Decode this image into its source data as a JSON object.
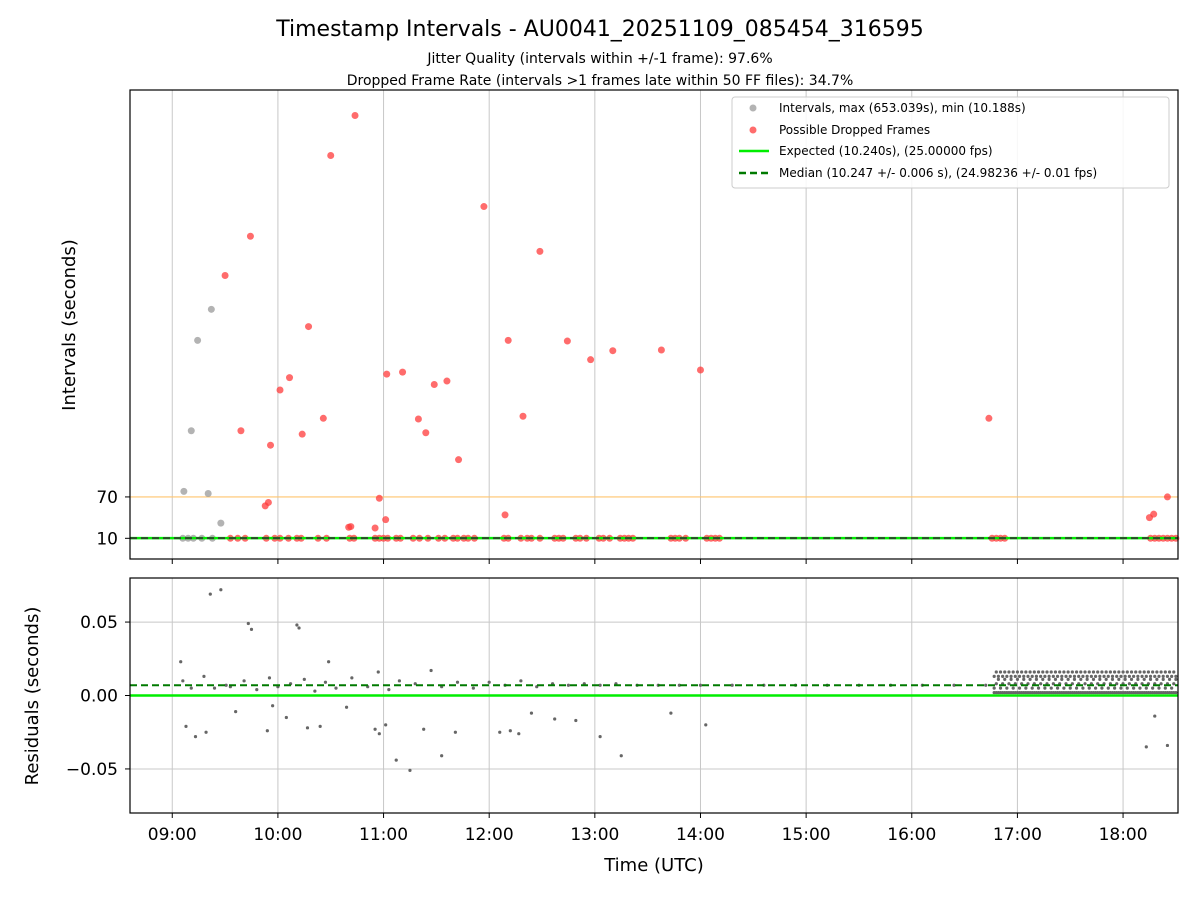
{
  "title": "Timestamp Intervals - AU0041_20251109_085454_316595",
  "subtitle_1": "Jitter Quality (intervals within +/-1 frame): 97.6%",
  "subtitle_2": "Dropped Frame Rate (intervals >1 frames late within 50 FF files): 34.7%",
  "colors": {
    "interval_points": "#999999",
    "dropped_points": "#ff3b3b",
    "expected_line": "#00ee00",
    "median_line": "#007a00",
    "threshold_line": "#ffc46e",
    "residual_points": "#666666",
    "grid": "#c8c8c8"
  },
  "chart_data": [
    {
      "type": "scatter",
      "panel": "top",
      "ylabel": "Intervals (seconds)",
      "y_tick_labels": [
        "10",
        "70"
      ],
      "y_ticks": [
        10,
        70
      ],
      "x_tick_labels": [
        "09:00",
        "10:00",
        "11:00",
        "12:00",
        "13:00",
        "14:00",
        "15:00",
        "16:00",
        "17:00",
        "18:00"
      ],
      "xlim_hours": [
        8.6,
        18.52
      ],
      "ylim_axis": [
        -20,
        660
      ],
      "grid": "vertical",
      "legend_position": "top-right",
      "legend": [
        "Intervals, max (653.039s), min (10.188s)",
        "Possible Dropped Frames",
        "Expected (10.240s), (25.00000 fps)",
        "Median (10.247 +/- 0.006 s), (24.98236 +/- 0.01 fps)"
      ],
      "expected_interval_s": 10.24,
      "median_interval_s": 10.247,
      "threshold_interval_s": 70,
      "series": [
        {
          "name": "Intervals, max (653.039s), min (10.188s)",
          "points": [
            [
              9.11,
              78
            ],
            [
              9.18,
              166
            ],
            [
              9.24,
              297
            ],
            [
              9.34,
              75
            ],
            [
              9.37,
              342
            ],
            [
              9.46,
              32
            ],
            [
              9.1,
              10
            ],
            [
              9.15,
              10
            ],
            [
              9.2,
              10
            ],
            [
              9.28,
              10
            ],
            [
              9.38,
              10
            ]
          ]
        },
        {
          "name": "Possible Dropped Frames",
          "points": [
            [
              9.5,
              391
            ],
            [
              9.65,
              166
            ],
            [
              9.74,
              448
            ],
            [
              9.88,
              57
            ],
            [
              9.91,
              62
            ],
            [
              9.93,
              145
            ],
            [
              10.02,
              225
            ],
            [
              10.11,
              243
            ],
            [
              10.23,
              161
            ],
            [
              10.29,
              317
            ],
            [
              10.43,
              184
            ],
            [
              10.67,
              26
            ],
            [
              10.69,
              27
            ],
            [
              10.73,
              623
            ],
            [
              10.5,
              565
            ],
            [
              10.92,
              25
            ],
            [
              10.96,
              68
            ],
            [
              11.02,
              37
            ],
            [
              11.03,
              248
            ],
            [
              11.18,
              251
            ],
            [
              11.33,
              183
            ],
            [
              11.4,
              163
            ],
            [
              11.48,
              233
            ],
            [
              11.6,
              238
            ],
            [
              11.71,
              124
            ],
            [
              11.95,
              491
            ],
            [
              12.15,
              44
            ],
            [
              12.18,
              297
            ],
            [
              12.32,
              187
            ],
            [
              12.48,
              426
            ],
            [
              12.74,
              296
            ],
            [
              12.96,
              269
            ],
            [
              13.17,
              282
            ],
            [
              13.63,
              283
            ],
            [
              14.0,
              254
            ],
            [
              16.73,
              184
            ],
            [
              18.25,
              40
            ],
            [
              18.29,
              45
            ],
            [
              18.42,
              70
            ],
            [
              9.55,
              10
            ],
            [
              9.62,
              10
            ],
            [
              9.69,
              10
            ],
            [
              9.89,
              10
            ],
            [
              9.97,
              10
            ],
            [
              10.02,
              10
            ],
            [
              10.1,
              10
            ],
            [
              10.18,
              10
            ],
            [
              10.22,
              10
            ],
            [
              10.38,
              10
            ],
            [
              10.46,
              10
            ],
            [
              10.68,
              10
            ],
            [
              10.72,
              10
            ],
            [
              10.92,
              10
            ],
            [
              10.96,
              10
            ],
            [
              11.0,
              10
            ],
            [
              11.04,
              10
            ],
            [
              11.12,
              10
            ],
            [
              11.16,
              10
            ],
            [
              11.28,
              10
            ],
            [
              11.34,
              10
            ],
            [
              11.42,
              10
            ],
            [
              11.52,
              10
            ],
            [
              11.58,
              10
            ],
            [
              11.66,
              10
            ],
            [
              11.7,
              10
            ],
            [
              11.76,
              10
            ],
            [
              11.8,
              10
            ],
            [
              11.86,
              10
            ],
            [
              12.14,
              10
            ],
            [
              12.18,
              10
            ],
            [
              12.3,
              10
            ],
            [
              12.36,
              10
            ],
            [
              12.4,
              10
            ],
            [
              12.48,
              10
            ],
            [
              12.62,
              10
            ],
            [
              12.66,
              10
            ],
            [
              12.7,
              10
            ],
            [
              12.82,
              10
            ],
            [
              12.86,
              10
            ],
            [
              12.92,
              10
            ],
            [
              13.04,
              10
            ],
            [
              13.08,
              10
            ],
            [
              13.14,
              10
            ],
            [
              13.24,
              10
            ],
            [
              13.28,
              10
            ],
            [
              13.32,
              10
            ],
            [
              13.36,
              10
            ],
            [
              13.72,
              10
            ],
            [
              13.76,
              10
            ],
            [
              13.8,
              10
            ],
            [
              13.86,
              10
            ],
            [
              14.06,
              10
            ],
            [
              14.1,
              10
            ],
            [
              14.14,
              10
            ],
            [
              14.18,
              10
            ],
            [
              16.76,
              10
            ],
            [
              16.8,
              10
            ],
            [
              16.84,
              10
            ],
            [
              16.88,
              10
            ],
            [
              18.26,
              10
            ],
            [
              18.3,
              10
            ],
            [
              18.34,
              10
            ],
            [
              18.38,
              10
            ],
            [
              18.42,
              10
            ],
            [
              18.46,
              10
            ],
            [
              18.5,
              10
            ]
          ]
        }
      ]
    },
    {
      "type": "scatter",
      "panel": "bottom",
      "xlabel": "Time (UTC)",
      "ylabel": "Residuals (seconds)",
      "y_tick_labels": [
        "−0.05",
        "0.00",
        "0.05"
      ],
      "y_ticks": [
        -0.05,
        0.0,
        0.05
      ],
      "x_tick_labels": [
        "09:00",
        "10:00",
        "11:00",
        "12:00",
        "13:00",
        "14:00",
        "15:00",
        "16:00",
        "17:00",
        "18:00"
      ],
      "xlim_hours": [
        8.6,
        18.52
      ],
      "ylim": [
        -0.08,
        0.08
      ],
      "grid": "both",
      "expected_residual": 0.0,
      "median_residual": 0.007,
      "series": [
        {
          "name": "",
          "points": [
            [
              9.08,
              0.023
            ],
            [
              9.13,
              -0.021
            ],
            [
              9.22,
              -0.028
            ],
            [
              9.32,
              -0.025
            ],
            [
              9.36,
              0.069
            ],
            [
              9.46,
              0.072
            ],
            [
              9.51,
              0.007
            ],
            [
              9.6,
              -0.011
            ],
            [
              9.72,
              0.049
            ],
            [
              9.75,
              0.045
            ],
            [
              9.9,
              -0.024
            ],
            [
              9.95,
              -0.007
            ],
            [
              10.08,
              -0.015
            ],
            [
              10.18,
              0.048
            ],
            [
              10.2,
              0.046
            ],
            [
              10.28,
              -0.022
            ],
            [
              10.4,
              -0.021
            ],
            [
              10.48,
              0.023
            ],
            [
              10.65,
              -0.008
            ],
            [
              10.92,
              -0.023
            ],
            [
              10.96,
              -0.026
            ],
            [
              11.02,
              -0.02
            ],
            [
              11.12,
              -0.044
            ],
            [
              11.25,
              -0.051
            ],
            [
              11.38,
              -0.023
            ],
            [
              11.55,
              -0.041
            ],
            [
              11.68,
              -0.025
            ],
            [
              12.1,
              -0.025
            ],
            [
              12.2,
              -0.024
            ],
            [
              12.28,
              -0.026
            ],
            [
              12.4,
              -0.012
            ],
            [
              12.62,
              -0.016
            ],
            [
              12.82,
              -0.017
            ],
            [
              13.05,
              -0.028
            ],
            [
              13.25,
              -0.041
            ],
            [
              13.72,
              -0.012
            ],
            [
              14.05,
              -0.02
            ],
            [
              18.22,
              -0.035
            ],
            [
              18.3,
              -0.014
            ],
            [
              18.42,
              -0.034
            ],
            [
              9.1,
              0.01
            ],
            [
              9.18,
              0.005
            ],
            [
              9.3,
              0.013
            ],
            [
              9.4,
              0.005
            ],
            [
              9.55,
              0.006
            ],
            [
              9.68,
              0.01
            ],
            [
              9.8,
              0.004
            ],
            [
              9.92,
              0.012
            ],
            [
              10.0,
              0.006
            ],
            [
              10.12,
              0.008
            ],
            [
              10.25,
              0.011
            ],
            [
              10.35,
              0.003
            ],
            [
              10.45,
              0.009
            ],
            [
              10.55,
              0.005
            ],
            [
              10.7,
              0.012
            ],
            [
              10.85,
              0.006
            ],
            [
              10.95,
              0.016
            ],
            [
              11.05,
              0.004
            ],
            [
              11.15,
              0.01
            ],
            [
              11.3,
              0.008
            ],
            [
              11.45,
              0.017
            ],
            [
              11.55,
              0.006
            ],
            [
              11.7,
              0.009
            ],
            [
              11.85,
              0.005
            ],
            [
              12.0,
              0.009
            ],
            [
              12.15,
              0.007
            ],
            [
              12.3,
              0.01
            ],
            [
              12.45,
              0.006
            ],
            [
              12.6,
              0.008
            ],
            [
              12.75,
              0.007
            ],
            [
              12.9,
              0.008
            ],
            [
              13.05,
              0.007
            ],
            [
              13.2,
              0.008
            ],
            [
              13.4,
              0.007
            ],
            [
              13.6,
              0.007
            ],
            [
              13.8,
              0.007
            ],
            [
              14.0,
              0.007
            ],
            [
              14.3,
              0.007
            ],
            [
              14.6,
              0.007
            ],
            [
              14.9,
              0.007
            ],
            [
              15.2,
              0.007
            ],
            [
              15.5,
              0.007
            ],
            [
              15.8,
              0.007
            ],
            [
              16.1,
              0.007
            ],
            [
              16.4,
              0.007
            ],
            [
              16.7,
              0.007
            ]
          ]
        }
      ]
    }
  ]
}
